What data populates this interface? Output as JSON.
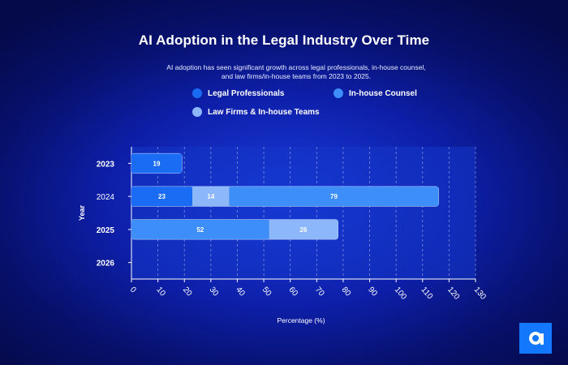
{
  "colors": {
    "legal_professionals": "#1a6cf5",
    "inhouse_counsel": "#3d8ef8",
    "law_firms_inhouse_teams": "#8cb8fb",
    "plot_bg": "#1436c6",
    "logo_bg": "#1478ff"
  },
  "icons": {
    "logo": "brand-a-logo-icon"
  },
  "chart_data": {
    "type": "bar",
    "orientation": "horizontal",
    "stacked": true,
    "title": "AI Adoption in the Legal Industry Over Time",
    "subtitle": "AI adoption has seen significant growth across legal professionals, in-house counsel, and law firms/in-house teams from 2023 to 2025.",
    "xlabel": "Percentage (%)",
    "ylabel": "Year",
    "categories": [
      "2023",
      "2024",
      "2025",
      "2026"
    ],
    "series": [
      {
        "name": "Legal Professionals",
        "values": [
          19,
          23,
          null,
          null
        ]
      },
      {
        "name": "In-house Counsel",
        "values": [
          null,
          null,
          52,
          null
        ]
      },
      {
        "name": "Law Firms & In-house Teams",
        "values": [
          null,
          14,
          26,
          null
        ]
      }
    ],
    "extra_segments": [
      {
        "category": "2024",
        "value": 79,
        "series": "In-house Counsel"
      }
    ],
    "xlim": [
      0,
      130
    ],
    "xticks": [
      0,
      10,
      20,
      30,
      40,
      50,
      60,
      70,
      80,
      90,
      100,
      110,
      120,
      130
    ],
    "grid": true,
    "legend_position": "top"
  }
}
